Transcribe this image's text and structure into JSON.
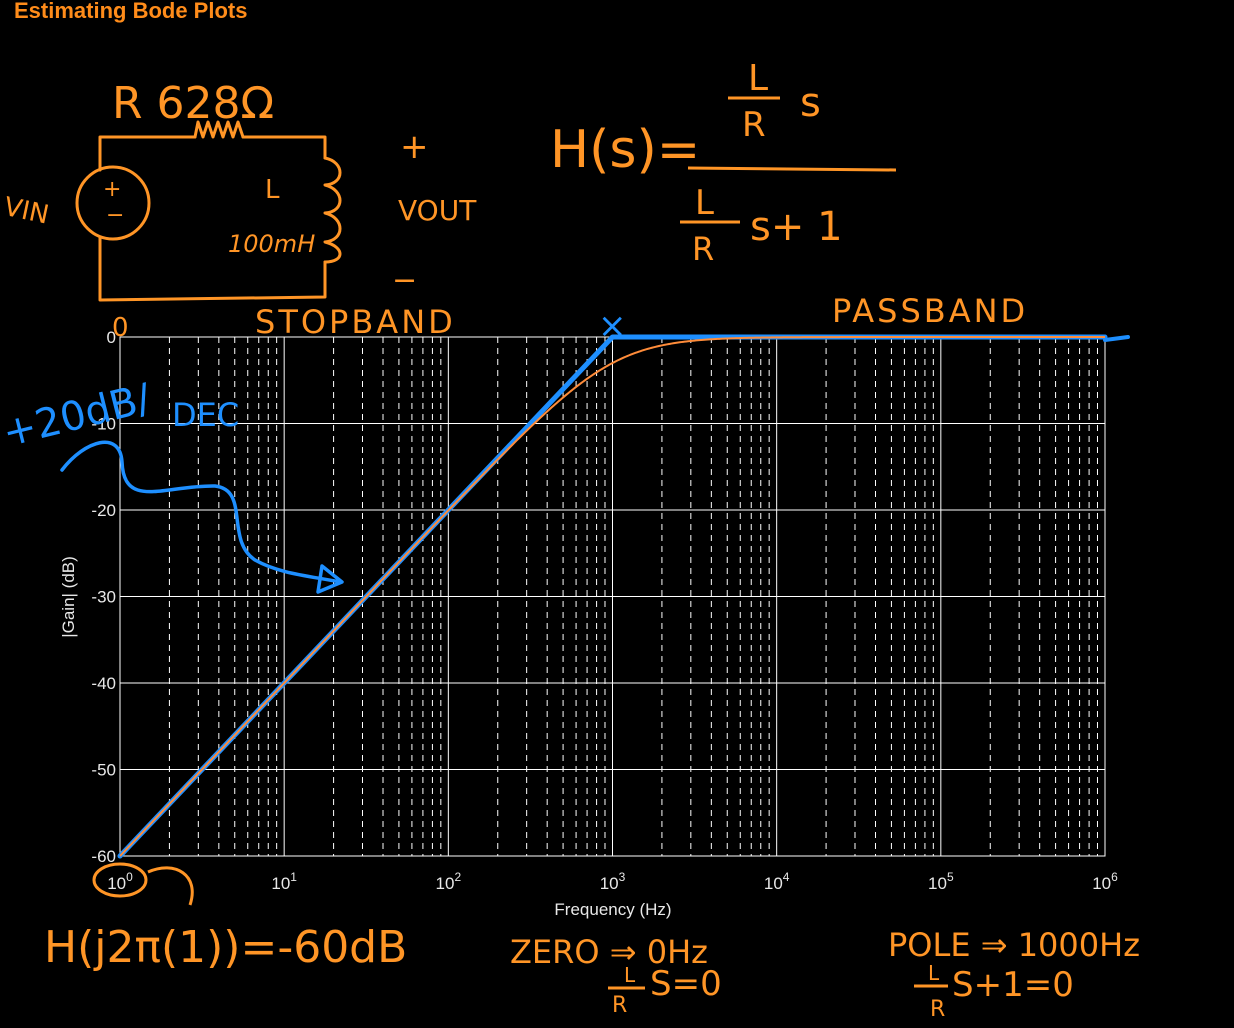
{
  "header": {
    "title": "Estimating Bode Plots"
  },
  "circuit": {
    "resistor_label": "R 628Ω",
    "inductor_label": "L",
    "inductor_value": "100mH",
    "source_label": "VIN",
    "source_plus": "+",
    "source_minus": "−",
    "vout_plus": "+",
    "vout_label": "VOUT",
    "vout_minus": "−"
  },
  "equation": {
    "lhs": "H(s)=",
    "num_frac_top": "L",
    "num_frac_bottom": "R",
    "num_var": "s",
    "den_frac_top": "L",
    "den_frac_bottom": "R",
    "den_rest": "s+ 1"
  },
  "annotations": {
    "origin_marker": "0",
    "stopband": "STOPBAND",
    "passband": "PASSBAND",
    "slope_label_a": "+20dB/",
    "slope_label_b": "DEC",
    "corner_marker": "×",
    "h_at_1hz": "H(j2π(1))=-60dB",
    "zero_line1": "ZERO ⇒ 0Hz",
    "zero_line2_frac_top": "L",
    "zero_line2_frac_bottom": "R",
    "zero_line2_rest": "S=0",
    "pole_line1": "POLE ⇒ 1000Hz",
    "pole_line2_frac_top": "L",
    "pole_line2_frac_bottom": "R",
    "pole_line2_rest": "S+1=0"
  },
  "colors": {
    "orange": "#ff9526",
    "blue": "#1e8fff",
    "grid": "#ffffff",
    "curve": "#ff8c3a"
  },
  "chart_data": {
    "type": "line",
    "xlabel": "Frequency (Hz)",
    "ylabel": "|Gain| (dB)",
    "x_scale": "log",
    "xlim": [
      1,
      1000000
    ],
    "ylim": [
      -60,
      0
    ],
    "grid": true,
    "xticks": [
      {
        "value": 1,
        "base": "10",
        "exp": "0"
      },
      {
        "value": 10,
        "base": "10",
        "exp": "1"
      },
      {
        "value": 100,
        "base": "10",
        "exp": "2"
      },
      {
        "value": 1000,
        "base": "10",
        "exp": "3"
      },
      {
        "value": 10000,
        "base": "10",
        "exp": "4"
      },
      {
        "value": 100000,
        "base": "10",
        "exp": "5"
      },
      {
        "value": 1000000,
        "base": "10",
        "exp": "6"
      }
    ],
    "yticks": [
      "0",
      "-10",
      "-20",
      "-30",
      "-40",
      "-50",
      "-60"
    ],
    "yticks_values": [
      0,
      -10,
      -20,
      -30,
      -40,
      -50,
      -60
    ],
    "series": [
      {
        "type": "highpass_magnitude",
        "corner_hz": 1000,
        "x": [
          1,
          10,
          100,
          300,
          1000,
          3000,
          10000,
          100000,
          1000000
        ],
        "y": [
          -60,
          -40,
          -20,
          -10.5,
          -3,
          -0.5,
          -0.04,
          0,
          0
        ]
      },
      {
        "type": "asymptote_sketch",
        "x": [
          1,
          1000,
          1000000
        ],
        "y": [
          -60,
          0,
          0
        ]
      }
    ]
  }
}
